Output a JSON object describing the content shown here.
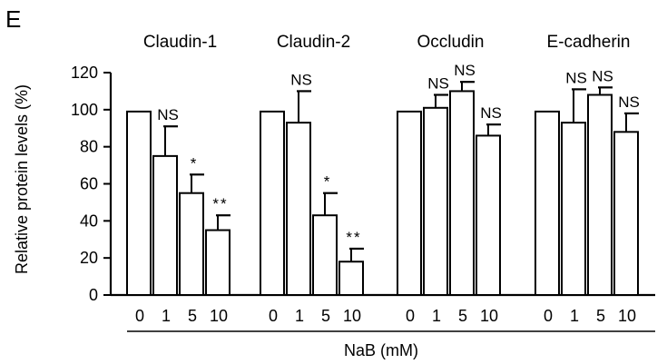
{
  "chart_data": {
    "type": "bar",
    "panel_label": "E",
    "ylabel": "Relative protein levels  (%)",
    "xlabel": "NaB  (mM)",
    "ylim": [
      0,
      120
    ],
    "yticks": [
      0,
      20,
      40,
      60,
      80,
      100,
      120
    ],
    "grid": false,
    "bar_fill": "#ffffff",
    "stroke_color": "#000000",
    "groups": [
      {
        "name": "Claudin-1",
        "categories": [
          "0",
          "1",
          "5",
          "10"
        ],
        "values": [
          99,
          75,
          55,
          35
        ],
        "errors": [
          0,
          16,
          10,
          8
        ],
        "annotations": [
          "",
          "NS",
          "*",
          "**"
        ]
      },
      {
        "name": "Claudin-2",
        "categories": [
          "0",
          "1",
          "5",
          "10"
        ],
        "values": [
          99,
          93,
          43,
          18
        ],
        "errors": [
          0,
          17,
          12,
          7
        ],
        "annotations": [
          "",
          "NS",
          "*",
          "**"
        ]
      },
      {
        "name": "Occludin",
        "categories": [
          "0",
          "1",
          "5",
          "10"
        ],
        "values": [
          99,
          101,
          110,
          86
        ],
        "errors": [
          0,
          7,
          5,
          6
        ],
        "annotations": [
          "",
          "NS",
          "NS",
          "NS"
        ]
      },
      {
        "name": "E-cadherin",
        "categories": [
          "0",
          "1",
          "5",
          "10"
        ],
        "values": [
          99,
          93,
          108,
          88
        ],
        "errors": [
          0,
          18,
          4,
          10
        ],
        "annotations": [
          "",
          "NS",
          "NS",
          "NS"
        ]
      }
    ]
  }
}
